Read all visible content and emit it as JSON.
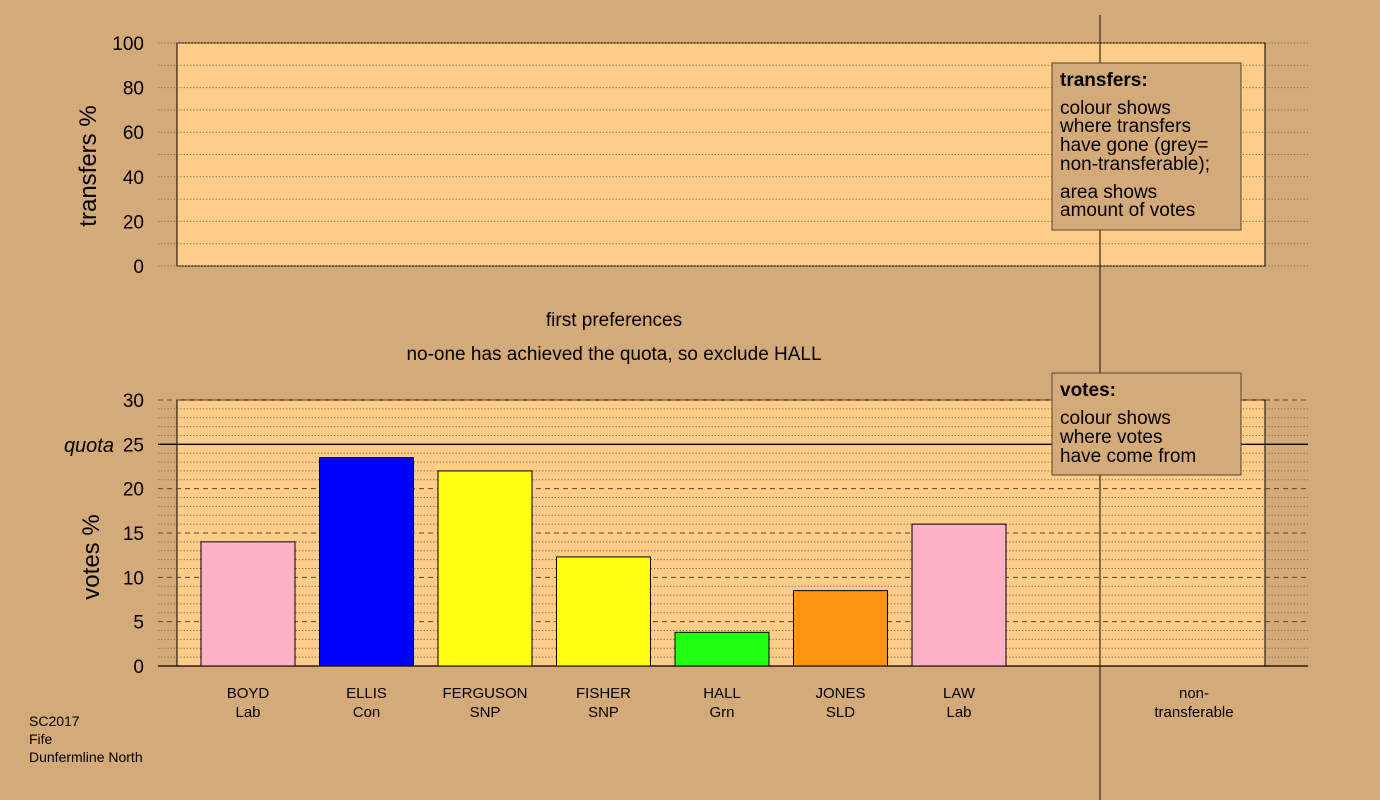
{
  "colors": {
    "background": "#d4aa78",
    "panel": "#ffcc8a",
    "Lab": "#ffb1c6",
    "Con": "#0000ff",
    "SNP": "#ffff11",
    "Grn": "#22ff11",
    "SLD": "#ff9611"
  },
  "transfers_panel": {
    "ylabel": "transfers %",
    "ylim": [
      0,
      100
    ],
    "ticks": [
      "0",
      "20",
      "40",
      "60",
      "80",
      "100"
    ],
    "legend": {
      "title": "transfers:",
      "lines": [
        "colour shows",
        "where transfers",
        "have gone (grey=",
        "non-transferable);"
      ],
      "lines2": [
        "area shows",
        "amount of votes"
      ]
    }
  },
  "stage": {
    "title": "first preferences",
    "subtitle": "no-one has achieved the quota, so exclude HALL"
  },
  "chart_data": {
    "type": "bar",
    "ylabel": "votes %",
    "ylim": [
      0,
      30
    ],
    "ticks": [
      "0",
      "5",
      "10",
      "15",
      "20",
      "25",
      "30"
    ],
    "quota": {
      "label": "quota",
      "value": 25
    },
    "categories": [
      {
        "name": "BOYD",
        "party": "Lab",
        "value": 14.0
      },
      {
        "name": "ELLIS",
        "party": "Con",
        "value": 23.5
      },
      {
        "name": "FERGUSON",
        "party": "SNP",
        "value": 22.0
      },
      {
        "name": "FISHER",
        "party": "SNP",
        "value": 12.3
      },
      {
        "name": "HALL",
        "party": "Grn",
        "value": 3.8
      },
      {
        "name": "JONES",
        "party": "SLD",
        "value": 8.5
      },
      {
        "name": "LAW",
        "party": "Lab",
        "value": 16.0
      }
    ],
    "nontransferable": {
      "line1": "non-",
      "line2": "transferable",
      "value": 0
    },
    "legend": {
      "title": "votes:",
      "lines": [
        "colour shows",
        "where votes",
        "have come from"
      ]
    }
  },
  "footer": [
    "SC2017",
    "Fife",
    "Dunfermline North"
  ]
}
